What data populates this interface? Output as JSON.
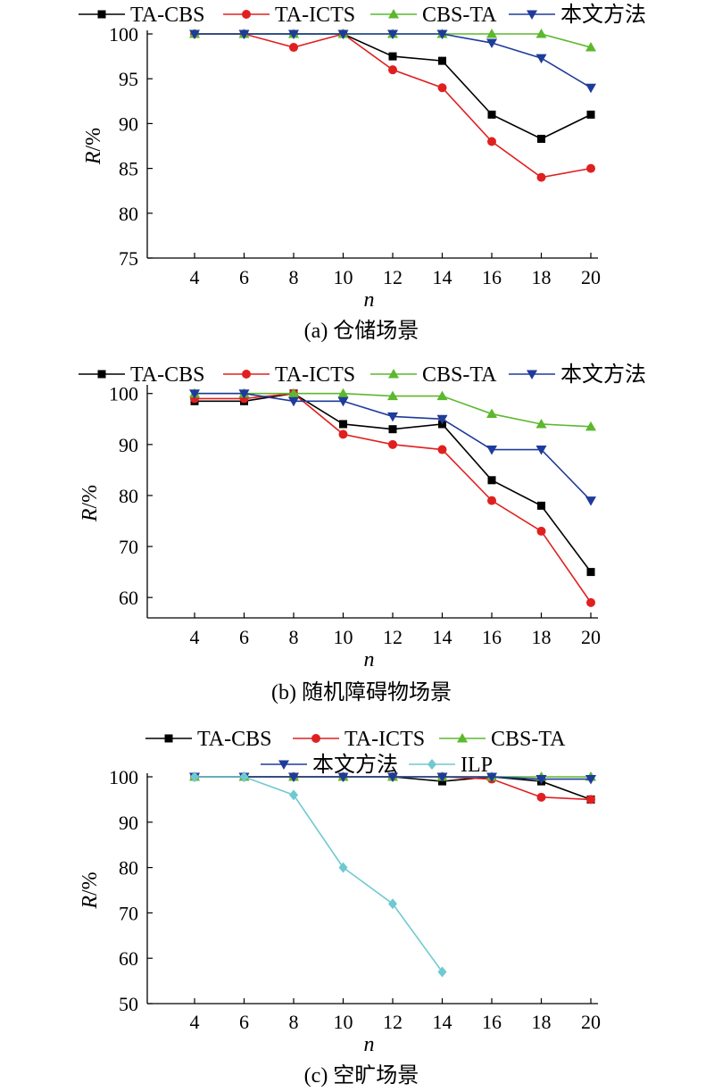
{
  "figure": {
    "colors": {
      "TA-CBS": "#000000",
      "TA-ICTS": "#e02020",
      "CBS-TA": "#5cb82e",
      "本文方法": "#1f3b9a",
      "ILP": "#6fc9d1"
    },
    "markers": {
      "TA-CBS": "square",
      "TA-ICTS": "circle",
      "CBS-TA": "triangle-up",
      "本文方法": "triangle-down",
      "ILP": "diamond"
    }
  },
  "chart_data": [
    {
      "type": "line",
      "caption": "(a) 仓储场景",
      "xlabel": "n",
      "ylabel": "R/%",
      "x": [
        4,
        6,
        8,
        10,
        12,
        14,
        16,
        18,
        20
      ],
      "xticks": [
        "4",
        "6",
        "8",
        "10",
        "12",
        "14",
        "16",
        "18",
        "20"
      ],
      "ylim": [
        75,
        100
      ],
      "yticks": [
        75,
        80,
        85,
        90,
        95,
        100
      ],
      "legend_position": "top",
      "series": [
        {
          "name": "TA-CBS",
          "values": [
            100,
            100,
            100,
            100,
            97.5,
            97,
            91,
            88.3,
            91
          ]
        },
        {
          "name": "TA-ICTS",
          "values": [
            100,
            100,
            98.5,
            100,
            96,
            94,
            88,
            84,
            85
          ]
        },
        {
          "name": "CBS-TA",
          "values": [
            100,
            100,
            100,
            100,
            100,
            100,
            100,
            100,
            98.5
          ]
        },
        {
          "name": "本文方法",
          "values": [
            100,
            100,
            100,
            100,
            100,
            100,
            99,
            97.3,
            94
          ]
        }
      ]
    },
    {
      "type": "line",
      "caption": "(b) 随机障碍物场景",
      "xlabel": "n",
      "ylabel": "R/%",
      "x": [
        4,
        6,
        8,
        10,
        12,
        14,
        16,
        18,
        20
      ],
      "xticks": [
        "4",
        "6",
        "8",
        "10",
        "12",
        "14",
        "16",
        "18",
        "20"
      ],
      "ylim": [
        56,
        101
      ],
      "yticks": [
        60,
        70,
        80,
        90,
        100
      ],
      "legend_position": "top",
      "series": [
        {
          "name": "TA-CBS",
          "values": [
            98.5,
            98.5,
            100,
            94,
            93,
            94,
            83,
            78,
            65
          ]
        },
        {
          "name": "TA-ICTS",
          "values": [
            99,
            99,
            100,
            92,
            90,
            89,
            79,
            73,
            59
          ]
        },
        {
          "name": "CBS-TA",
          "values": [
            100,
            100,
            100,
            100,
            99.5,
            99.5,
            96,
            94,
            93.5
          ]
        },
        {
          "name": "本文方法",
          "values": [
            100,
            100,
            98.5,
            98.5,
            95.5,
            95,
            89,
            89,
            79
          ]
        }
      ]
    },
    {
      "type": "line",
      "caption": "(c) 空旷场景",
      "xlabel": "n",
      "ylabel": "R/%",
      "x": [
        4,
        6,
        8,
        10,
        12,
        14,
        16,
        18,
        20
      ],
      "xticks": [
        "4",
        "6",
        "8",
        "10",
        "12",
        "14",
        "16",
        "18",
        "20"
      ],
      "ylim": [
        50,
        100
      ],
      "yticks": [
        50,
        60,
        70,
        80,
        90,
        100
      ],
      "legend_position": "top",
      "series": [
        {
          "name": "TA-CBS",
          "values": [
            100,
            100,
            100,
            100,
            100,
            99,
            100,
            99,
            95
          ]
        },
        {
          "name": "TA-ICTS",
          "values": [
            100,
            100,
            100,
            100,
            100,
            100,
            99.5,
            95.5,
            95
          ]
        },
        {
          "name": "CBS-TA",
          "values": [
            100,
            100,
            100,
            100,
            100,
            100,
            100,
            100,
            100
          ]
        },
        {
          "name": "本文方法",
          "values": [
            100,
            100,
            100,
            100,
            100,
            100,
            100,
            99.5,
            99.5
          ]
        },
        {
          "name": "ILP",
          "values": [
            100,
            100,
            96,
            80,
            72,
            57,
            null,
            null,
            null
          ]
        }
      ]
    }
  ]
}
